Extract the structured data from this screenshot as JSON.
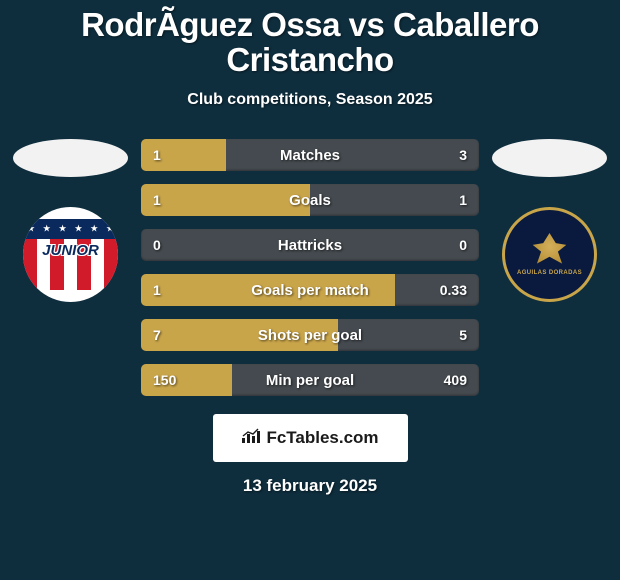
{
  "title": "RodrÃ­guez Ossa vs Caballero Cristancho",
  "subtitle": "Club competitions, Season 2025",
  "date": "13 february 2025",
  "footer_brand": "FcTables.com",
  "colors": {
    "bg": "#0e2e3e",
    "bar_bg": "#444a4f",
    "gold": "#c9a54a",
    "player_left_color": "#c9a54a",
    "player_right_color": "#444a4f",
    "text": "#ffffff"
  },
  "crests": {
    "left_label": "JUNIOR",
    "right_label": "AGUILAS DORADAS"
  },
  "bars": [
    {
      "label": "Matches",
      "left": "1",
      "right": "3",
      "lnum": 1,
      "rnum": 3,
      "lfrac": 0.25,
      "rfrac": 0.0
    },
    {
      "label": "Goals",
      "left": "1",
      "right": "1",
      "lnum": 1,
      "rnum": 1,
      "lfrac": 0.5,
      "rfrac": 0.0
    },
    {
      "label": "Hattricks",
      "left": "0",
      "right": "0",
      "lnum": 0,
      "rnum": 0,
      "lfrac": 0.0,
      "rfrac": 0.0
    },
    {
      "label": "Goals per match",
      "left": "1",
      "right": "0.33",
      "lnum": 1,
      "rnum": 0.33,
      "lfrac": 0.752,
      "rfrac": 0.0
    },
    {
      "label": "Shots per goal",
      "left": "7",
      "right": "5",
      "lnum": 7,
      "rnum": 5,
      "lfrac": 0.583,
      "rfrac": 0.0
    },
    {
      "label": "Min per goal",
      "left": "150",
      "right": "409",
      "lnum": 150,
      "rnum": 409,
      "lfrac": 0.268,
      "rfrac": 0.0
    }
  ]
}
